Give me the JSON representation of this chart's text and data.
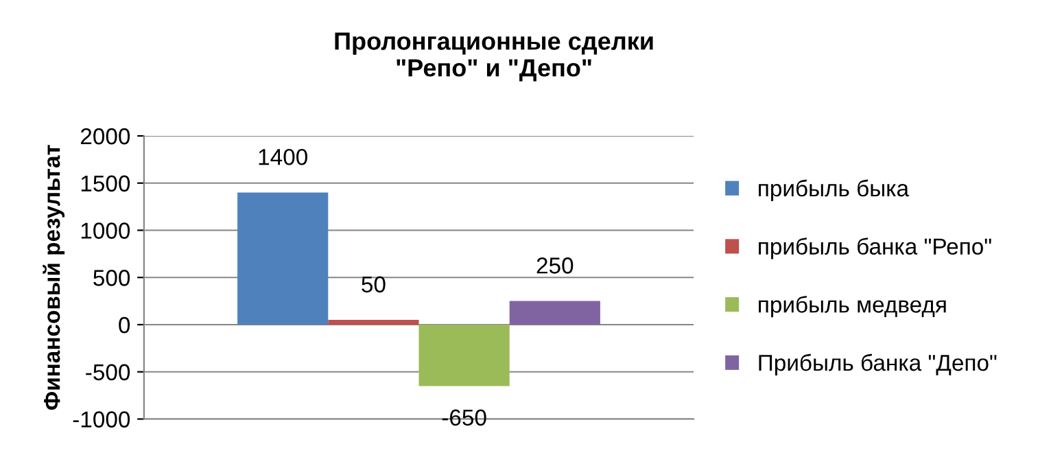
{
  "chart_data": {
    "type": "bar",
    "title": "Пролонгационные сделки\n\"Репо\" и \"Депо\"",
    "ylabel": "Финансовый результат",
    "categories": [
      null
    ],
    "series": [
      {
        "name": "прибыль быка",
        "color": "#4f81bd",
        "values": [
          1400
        ]
      },
      {
        "name": "прибыль банка \"Репо\"",
        "color": "#c0504d",
        "values": [
          50
        ]
      },
      {
        "name": "прибыль медведя",
        "color": "#9bbb59",
        "values": [
          -650
        ]
      },
      {
        "name": "Прибыль банка \"Депо\"",
        "color": "#8064a2",
        "values": [
          250
        ]
      }
    ],
    "ylim": [
      -1000,
      2000
    ],
    "yticks": [
      -1000,
      -500,
      0,
      500,
      1000,
      1500,
      2000
    ],
    "grid": "y",
    "legend": "right",
    "data_labels": true,
    "tick_labels": "y"
  }
}
